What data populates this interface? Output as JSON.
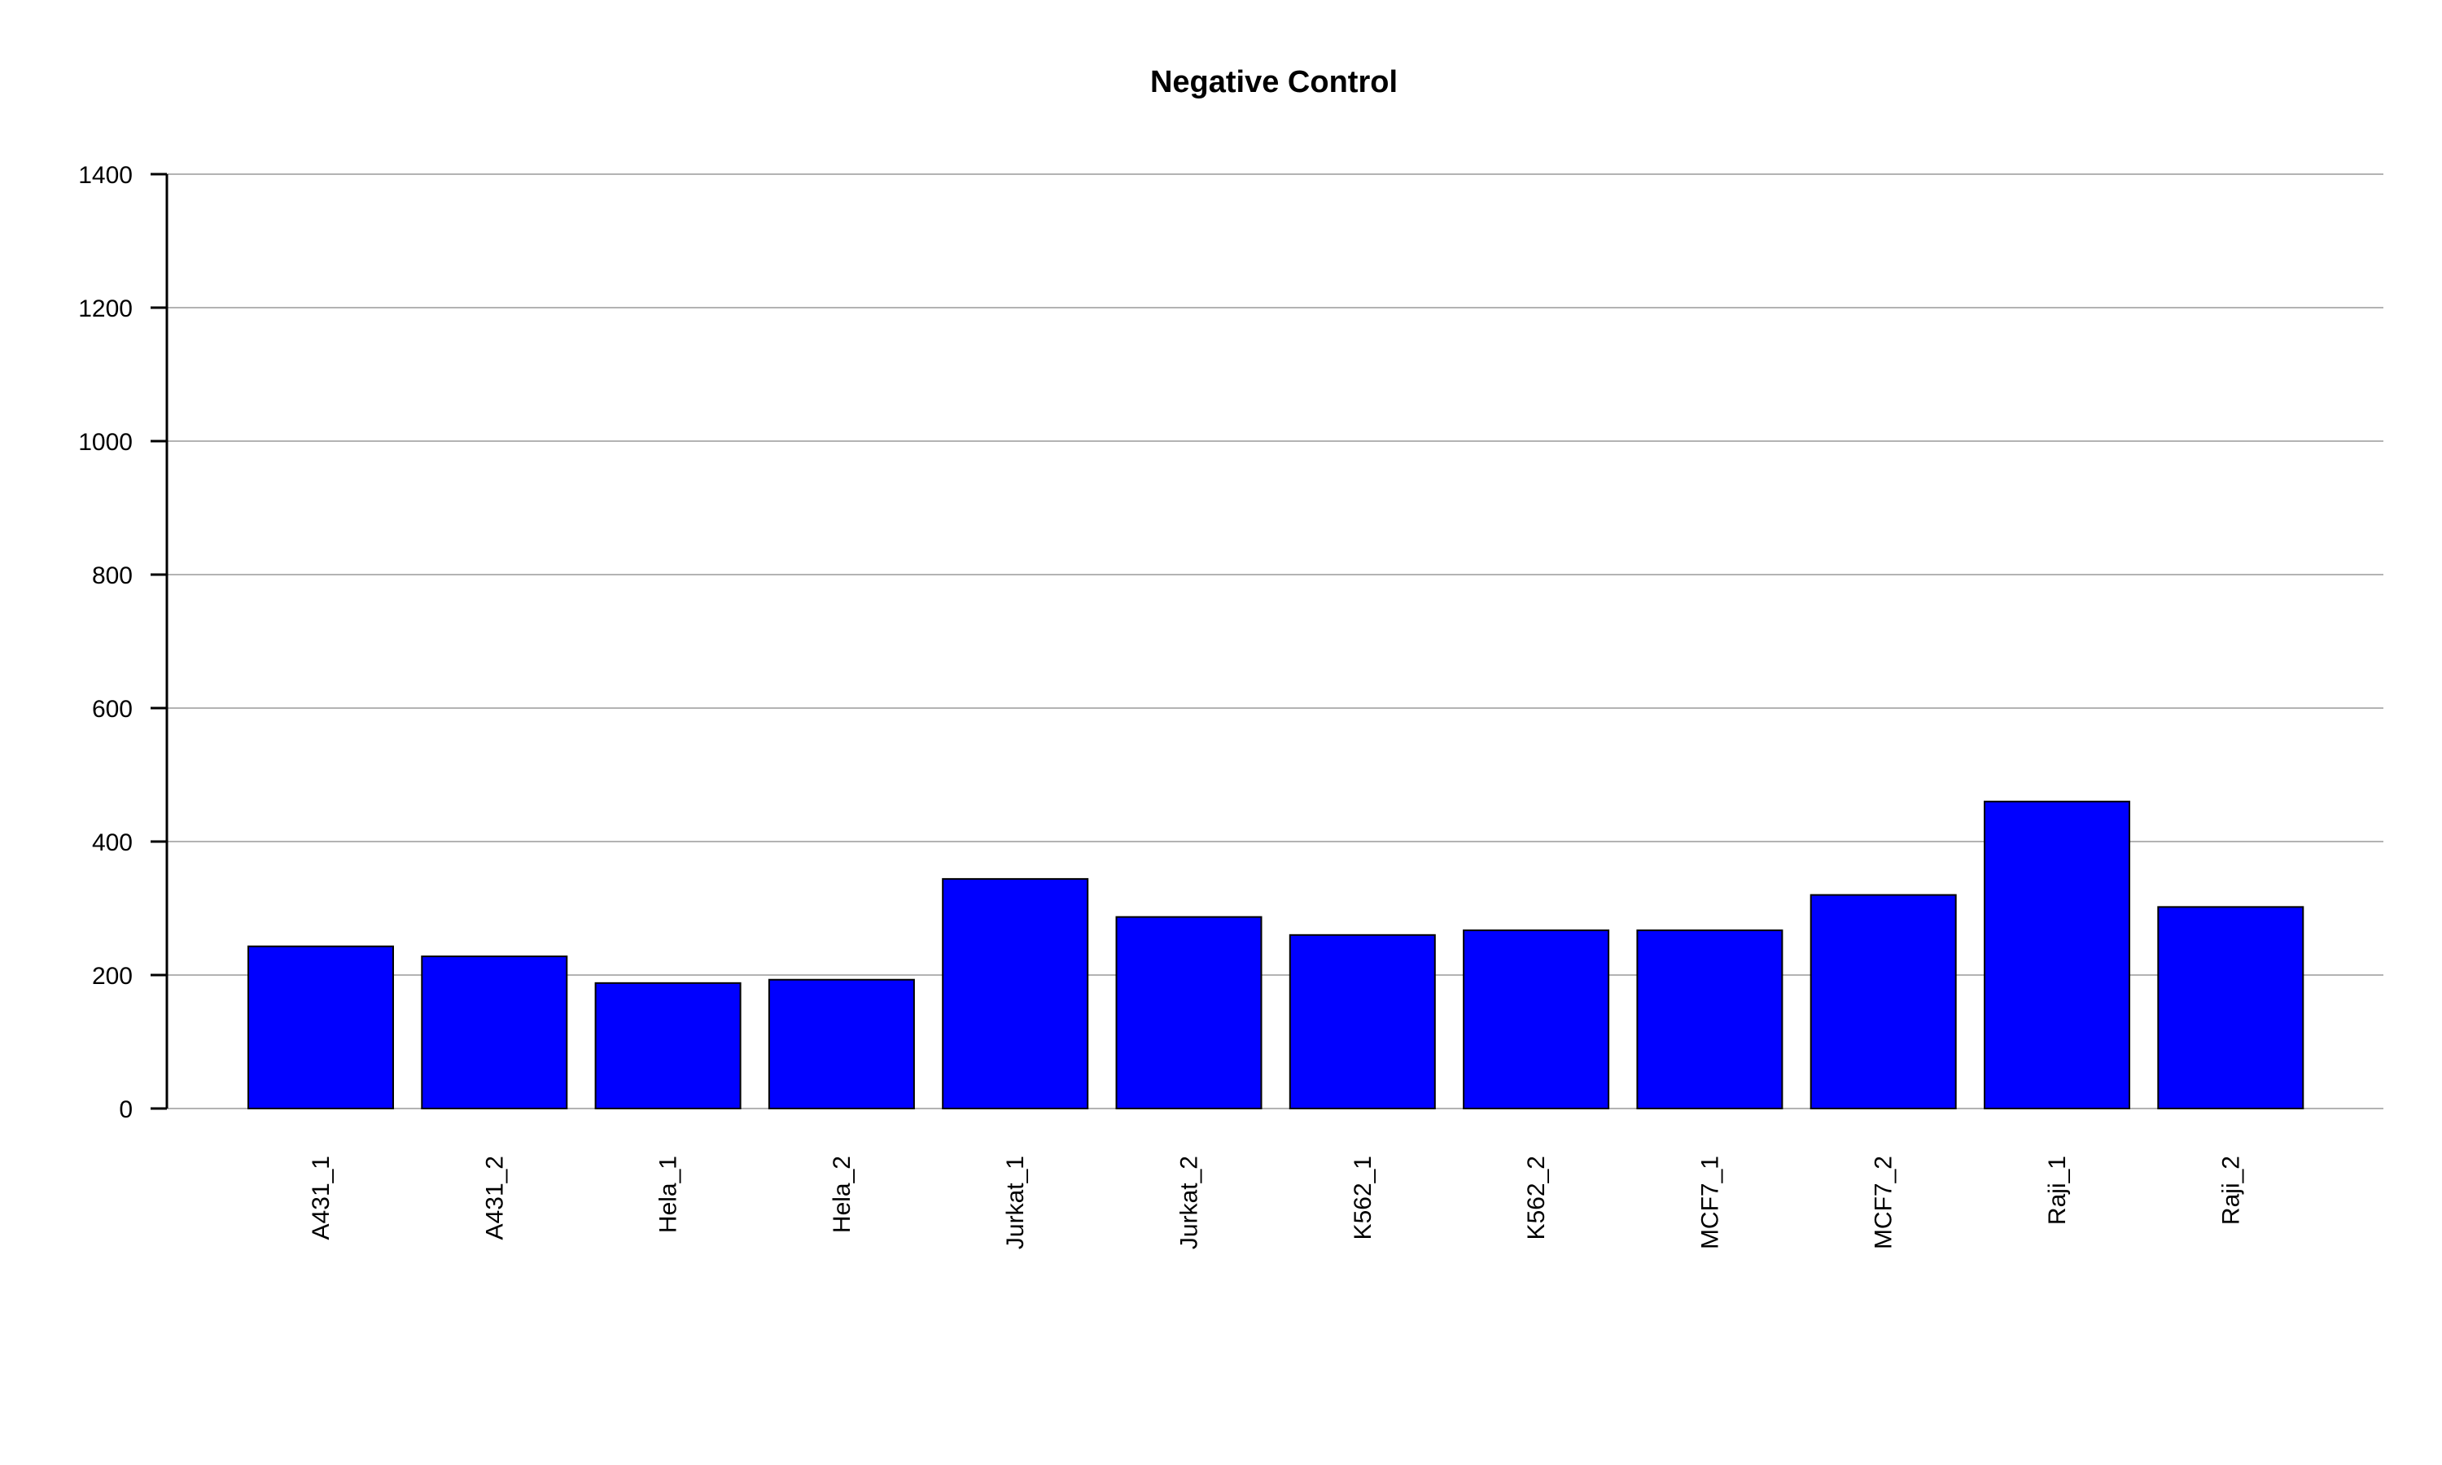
{
  "chart_data": {
    "type": "bar",
    "title": "Negative Control",
    "xlabel": "",
    "ylabel": "",
    "categories": [
      "A431_1",
      "A431_2",
      "Hela_1",
      "Hela_2",
      "Jurkat_1",
      "Jurkat_2",
      "K562_1",
      "K562_2",
      "MCF7_1",
      "MCF7_2",
      "Raji_1",
      "Raji_2"
    ],
    "values": [
      243,
      228,
      188,
      193,
      344,
      287,
      260,
      267,
      267,
      320,
      460,
      302
    ],
    "ylim": [
      0,
      1400
    ],
    "yticks": [
      0,
      200,
      400,
      600,
      800,
      1000,
      1200,
      1400
    ],
    "grid": true,
    "bar_color": "#0000ff",
    "bar_edge_color": "#000000",
    "grid_color": "#b3b3b3"
  }
}
